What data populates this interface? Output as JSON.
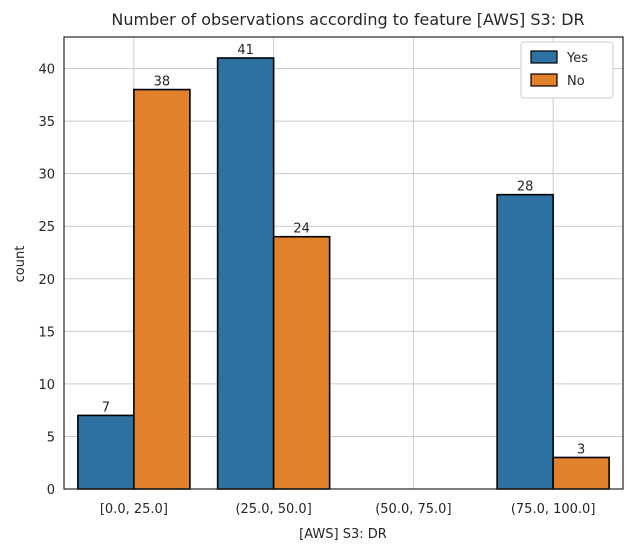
{
  "chart_data": {
    "type": "bar",
    "title": "Number of observations according to feature [AWS] S3: DR",
    "xlabel": "[AWS] S3: DR",
    "ylabel": "count",
    "categories": [
      "[0.0, 25.0]",
      "(25.0, 50.0]",
      "(50.0, 75.0]",
      "(75.0, 100.0]"
    ],
    "series": [
      {
        "name": "Yes",
        "values": [
          7,
          41,
          0,
          28
        ],
        "labels": [
          "7",
          "41",
          "",
          "28"
        ],
        "color": "#2e72a4"
      },
      {
        "name": "No",
        "values": [
          38,
          24,
          0,
          3
        ],
        "labels": [
          "38",
          "24",
          "",
          "3"
        ],
        "color": "#e1812c"
      }
    ],
    "ylim": [
      0,
      43
    ],
    "yticks": [
      0,
      5,
      10,
      15,
      20,
      25,
      30,
      35,
      40
    ],
    "grid": true,
    "legend_position": "top-right"
  }
}
